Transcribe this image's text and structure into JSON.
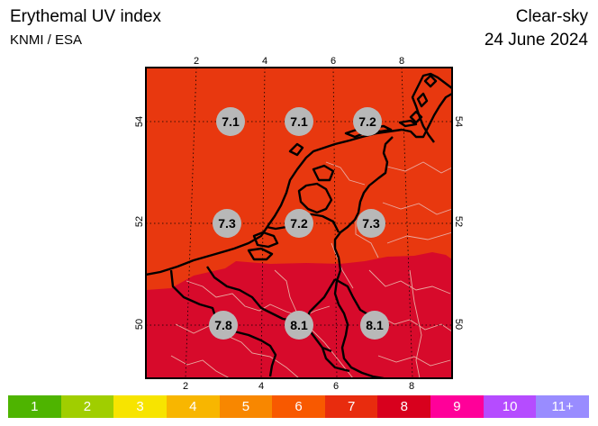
{
  "header": {
    "title": "Erythemal UV index",
    "source": "KNMI / ESA",
    "sky": "Clear-sky",
    "date": "24 June 2024"
  },
  "map": {
    "lon_ticks_top": [
      "2",
      "4",
      "6",
      "8"
    ],
    "lon_ticks_bottom": [
      "2",
      "4",
      "6",
      "8"
    ],
    "lat_ticks": [
      "54",
      "52",
      "50"
    ],
    "region_colors": {
      "north": "#e8380f",
      "south": "#d70a2b",
      "border": "#000000",
      "land_lines": "#e9a9a0"
    },
    "uv_values": [
      {
        "label": "7.1",
        "lon": 3,
        "lat": 54
      },
      {
        "label": "7.1",
        "lon": 5,
        "lat": 54
      },
      {
        "label": "7.2",
        "lon": 7,
        "lat": 54
      },
      {
        "label": "7.3",
        "lon": 3,
        "lat": 52
      },
      {
        "label": "7.2",
        "lon": 5,
        "lat": 52
      },
      {
        "label": "7.3",
        "lon": 7,
        "lat": 52
      },
      {
        "label": "7.8",
        "lon": 3,
        "lat": 50
      },
      {
        "label": "8.1",
        "lon": 5,
        "lat": 50
      },
      {
        "label": "8.1",
        "lon": 7,
        "lat": 50
      }
    ]
  },
  "legend": [
    {
      "label": "1",
      "color": "#4eb400"
    },
    {
      "label": "2",
      "color": "#a0ce00"
    },
    {
      "label": "3",
      "color": "#f7e400"
    },
    {
      "label": "4",
      "color": "#f8b600"
    },
    {
      "label": "5",
      "color": "#f88700"
    },
    {
      "label": "6",
      "color": "#f85900"
    },
    {
      "label": "7",
      "color": "#e82c0e"
    },
    {
      "label": "8",
      "color": "#d8001d"
    },
    {
      "label": "9",
      "color": "#ff0099"
    },
    {
      "label": "10",
      "color": "#b54cff"
    },
    {
      "label": "11+",
      "color": "#998cff"
    }
  ]
}
